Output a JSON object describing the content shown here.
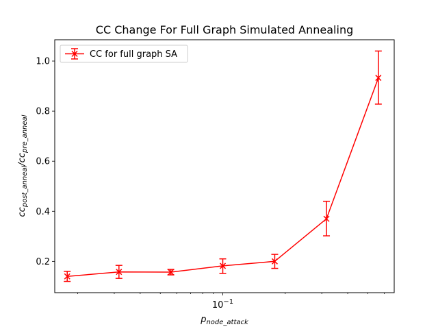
{
  "chart_data": {
    "type": "line",
    "title": "CC Change For Full Graph Simulated Annealing",
    "xlabel": {
      "base": "p",
      "sub": "node_attack"
    },
    "ylabel": {
      "part1": "cc",
      "sub1": "post_anneal",
      "slash": "/",
      "part2": "cc",
      "sub2": "pre_anneal"
    },
    "xscale": "log",
    "xlim": [
      0.0155,
      0.67
    ],
    "ylim": [
      0.075,
      1.085
    ],
    "x_major_ticks": [
      {
        "value": 0.1,
        "base": "10",
        "exp": "−1"
      }
    ],
    "x_minor_ticks": [
      0.02,
      0.03,
      0.04,
      0.05,
      0.06,
      0.07,
      0.08,
      0.09,
      0.2,
      0.3,
      0.4,
      0.5,
      0.6
    ],
    "y_ticks": [
      {
        "value": 0.2,
        "label": "0.2"
      },
      {
        "value": 0.4,
        "label": "0.4"
      },
      {
        "value": 0.6,
        "label": "0.6"
      },
      {
        "value": 0.8,
        "label": "0.8"
      },
      {
        "value": 1.0,
        "label": "1.0"
      }
    ],
    "grid": false,
    "legend": {
      "position": "top-left"
    },
    "series": [
      {
        "name": "CC for full graph SA",
        "color": "#ff0000",
        "marker": "x",
        "x": [
          0.0178,
          0.0316,
          0.0562,
          0.1,
          0.178,
          0.316,
          0.562
        ],
        "y": [
          0.14,
          0.158,
          0.157,
          0.182,
          0.2,
          0.37,
          0.933
        ],
        "yerr_low": [
          0.12,
          0.132,
          0.146,
          0.152,
          0.172,
          0.302,
          0.828
        ],
        "yerr_high": [
          0.16,
          0.184,
          0.168,
          0.21,
          0.228,
          0.44,
          1.04
        ]
      }
    ]
  }
}
